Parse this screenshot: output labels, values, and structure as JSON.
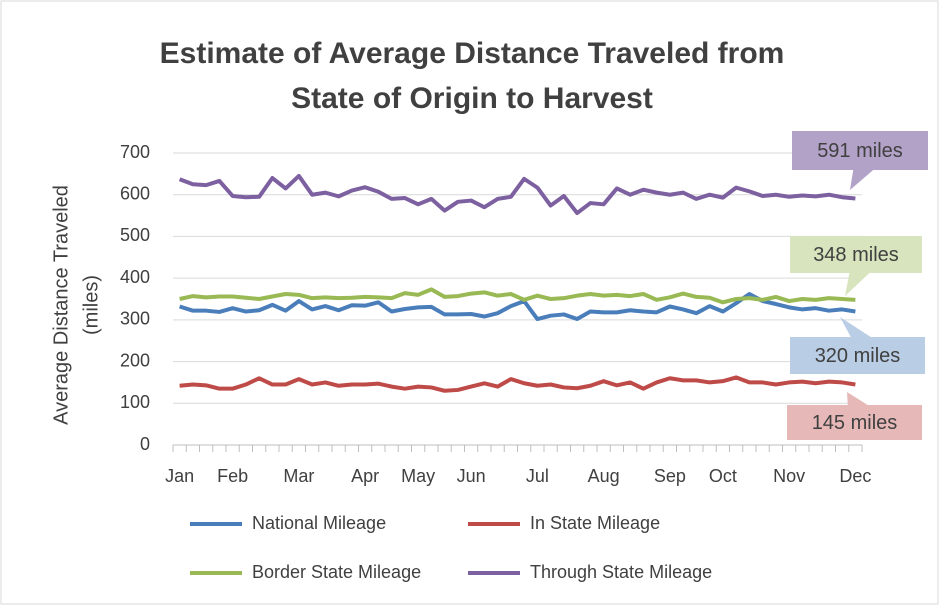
{
  "chart_data": {
    "type": "line",
    "title": [
      "Estimate of Average Distance Traveled from",
      "State of Origin to Harvest"
    ],
    "y_label": [
      "Average Distance Traveled",
      "(miles)"
    ],
    "categories": [
      "Jan",
      null,
      null,
      null,
      "Feb",
      null,
      null,
      null,
      null,
      "Mar",
      null,
      null,
      null,
      null,
      "Apr",
      null,
      null,
      null,
      "May",
      null,
      null,
      null,
      "Jun",
      null,
      null,
      null,
      null,
      "Jul",
      null,
      null,
      null,
      null,
      "Aug",
      null,
      null,
      null,
      null,
      "Sep",
      null,
      null,
      null,
      "Oct",
      null,
      null,
      null,
      null,
      "Nov",
      null,
      null,
      null,
      null,
      "Dec"
    ],
    "ylim": [
      0,
      700
    ],
    "yticks": [
      0,
      100,
      200,
      300,
      400,
      500,
      600,
      700
    ],
    "grid": true,
    "series": [
      {
        "name": "National Mileage",
        "color": "#4a7ebb",
        "values": [
          332,
          322,
          322,
          319,
          328,
          320,
          323,
          336,
          322,
          345,
          325,
          333,
          323,
          335,
          334,
          342,
          320,
          326,
          330,
          331,
          313,
          313,
          314,
          308,
          316,
          333,
          345,
          302,
          310,
          313,
          302,
          320,
          318,
          318,
          323,
          320,
          318,
          332,
          325,
          316,
          333,
          320,
          340,
          362,
          345,
          338,
          330,
          325,
          328,
          322,
          325,
          320
        ]
      },
      {
        "name": "In State Mileage",
        "color": "#be4b48",
        "values": [
          142,
          145,
          143,
          135,
          135,
          145,
          160,
          145,
          145,
          158,
          145,
          150,
          142,
          145,
          145,
          147,
          140,
          135,
          140,
          138,
          130,
          132,
          140,
          148,
          140,
          158,
          148,
          142,
          145,
          138,
          136,
          142,
          153,
          143,
          150,
          135,
          150,
          160,
          155,
          155,
          150,
          153,
          162,
          150,
          150,
          145,
          150,
          152,
          148,
          152,
          150,
          145
        ]
      },
      {
        "name": "Border State Mileage",
        "color": "#98b954",
        "values": [
          350,
          357,
          354,
          356,
          356,
          353,
          350,
          356,
          362,
          360,
          352,
          354,
          352,
          353,
          355,
          354,
          352,
          364,
          360,
          373,
          355,
          357,
          363,
          366,
          358,
          362,
          348,
          358,
          350,
          352,
          358,
          362,
          358,
          360,
          357,
          362,
          348,
          354,
          363,
          355,
          353,
          342,
          350,
          352,
          348,
          355,
          345,
          350,
          348,
          352,
          350,
          348
        ]
      },
      {
        "name": "Through State Mileage",
        "color": "#7d60a0",
        "values": [
          637,
          625,
          623,
          633,
          597,
          594,
          595,
          640,
          615,
          645,
          600,
          605,
          596,
          610,
          618,
          607,
          590,
          592,
          577,
          590,
          562,
          583,
          586,
          570,
          590,
          595,
          638,
          617,
          574,
          597,
          556,
          580,
          577,
          615,
          600,
          612,
          605,
          600,
          605,
          590,
          600,
          593,
          617,
          608,
          597,
          600,
          595,
          598,
          596,
          600,
          594,
          591
        ]
      }
    ],
    "annotations": [
      {
        "text": "591 miles",
        "color": "#b3a2c7"
      },
      {
        "text": "348 miles",
        "color": "#d7e4bd"
      },
      {
        "text": "320 miles",
        "color": "#b9cde5"
      },
      {
        "text": "145 miles",
        "color": "#e6b9b8"
      }
    ]
  }
}
